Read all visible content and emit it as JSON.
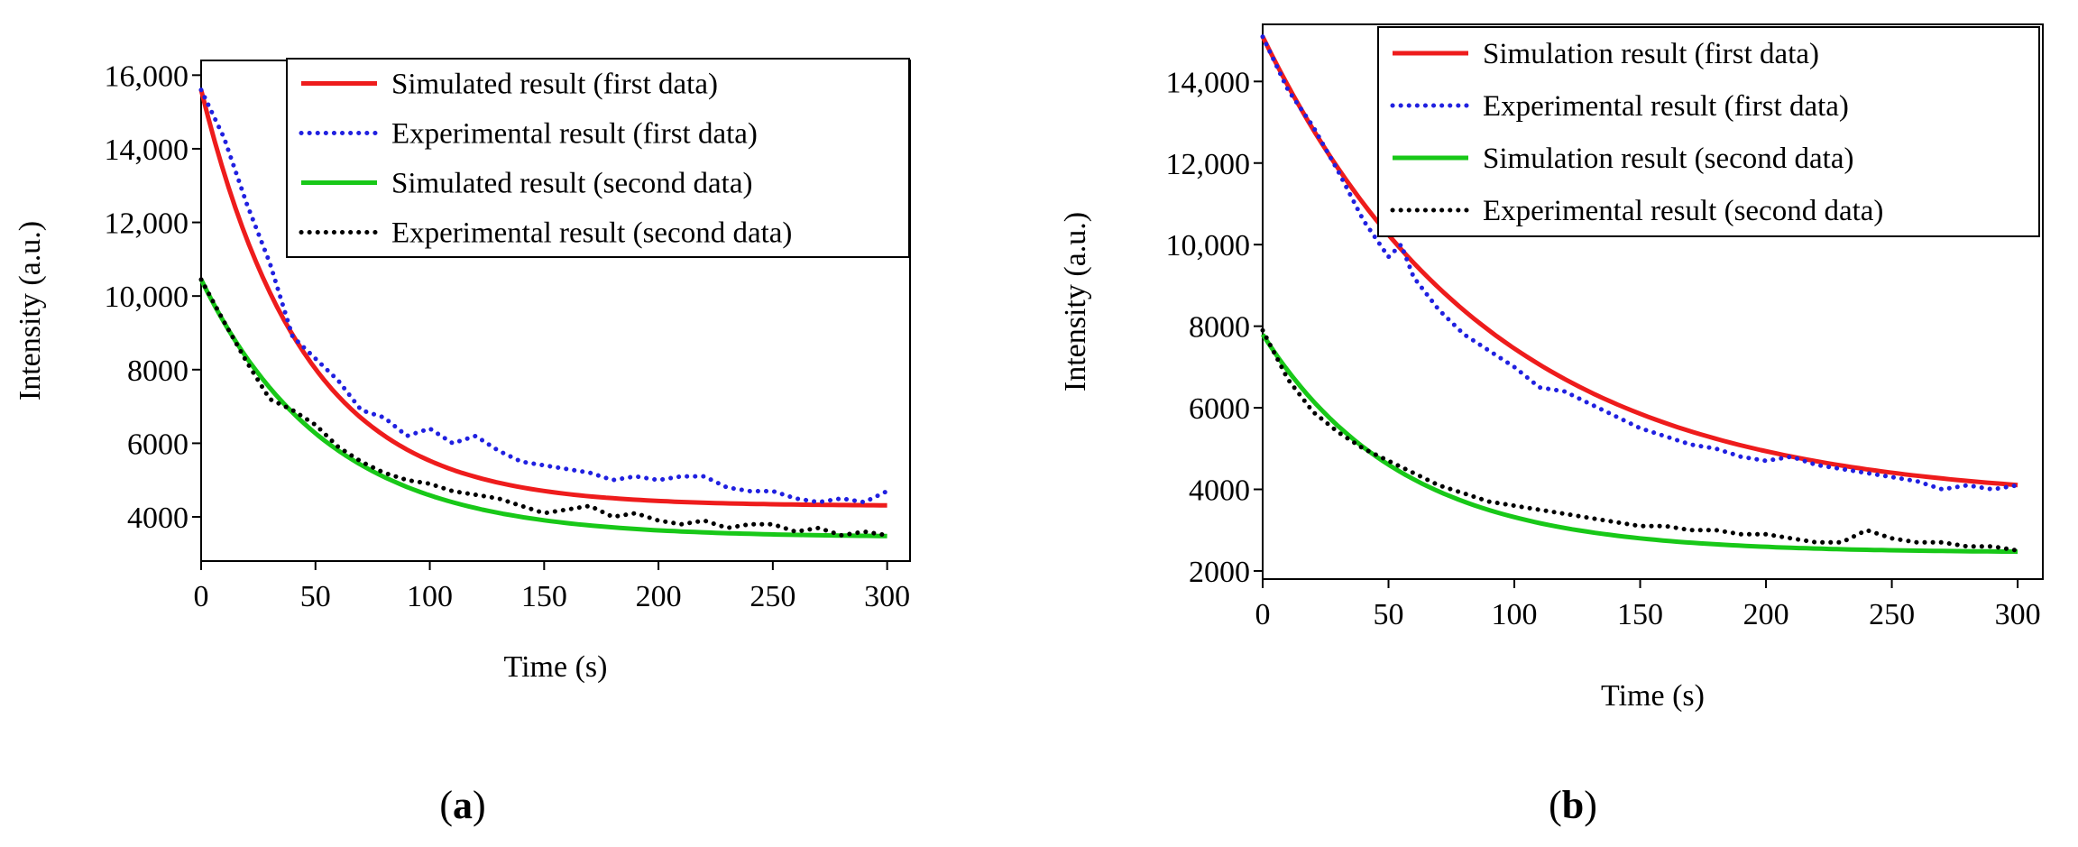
{
  "chart_data": [
    {
      "panel": "a",
      "type": "line",
      "caption_open": "(",
      "caption_letter": "a",
      "caption_close": ")",
      "xlabel": "Time (s)",
      "ylabel": "Intensity (a.u.)",
      "xlim": [
        0,
        310
      ],
      "ylim": [
        2800,
        16400
      ],
      "xticks": [
        0,
        50,
        100,
        150,
        200,
        250,
        300
      ],
      "xtick_labels": [
        "0",
        "50",
        "100",
        "150",
        "200",
        "250",
        "300"
      ],
      "yticks": [
        4000,
        6000,
        8000,
        10000,
        12000,
        14000,
        16000
      ],
      "ytick_labels": [
        "4000",
        "6000",
        "8000",
        "10,000",
        "12,000",
        "14,000",
        "16,000"
      ],
      "legend_position": "top-right",
      "series": [
        {
          "name": "Simulated result (first data)",
          "style": "solid",
          "color": "#ee1c1c",
          "model": {
            "y0": 15600,
            "yinf": 4300,
            "tau": 45
          }
        },
        {
          "name": "Experimental result (first data)",
          "style": "dotted",
          "color": "#2020e0",
          "x": [
            0,
            10,
            20,
            30,
            40,
            50,
            60,
            70,
            80,
            90,
            100,
            110,
            120,
            130,
            140,
            150,
            160,
            170,
            180,
            190,
            200,
            210,
            220,
            230,
            240,
            250,
            260,
            270,
            280,
            290,
            300
          ],
          "y": [
            15600,
            14300,
            12500,
            10900,
            8900,
            8300,
            7700,
            6900,
            6700,
            6200,
            6400,
            6000,
            6200,
            5800,
            5500,
            5400,
            5300,
            5200,
            5000,
            5100,
            5000,
            5100,
            5100,
            4800,
            4700,
            4700,
            4500,
            4400,
            4500,
            4400,
            4700
          ]
        },
        {
          "name": "Simulated result (second data)",
          "style": "solid",
          "color": "#18c818",
          "model": {
            "y0": 10450,
            "yinf": 3450,
            "tau": 55
          }
        },
        {
          "name": "Experimental result (second data)",
          "style": "dotted",
          "color": "#000000",
          "x": [
            0,
            10,
            20,
            30,
            40,
            50,
            60,
            70,
            80,
            90,
            100,
            110,
            120,
            130,
            140,
            150,
            160,
            170,
            180,
            190,
            200,
            210,
            220,
            230,
            240,
            250,
            260,
            270,
            280,
            290,
            300
          ],
          "y": [
            10450,
            9300,
            8200,
            7200,
            6900,
            6500,
            5900,
            5500,
            5200,
            5000,
            4900,
            4700,
            4600,
            4500,
            4300,
            4100,
            4200,
            4300,
            4000,
            4100,
            3900,
            3800,
            3900,
            3700,
            3800,
            3800,
            3600,
            3700,
            3500,
            3600,
            3500
          ]
        }
      ]
    },
    {
      "panel": "b",
      "type": "line",
      "caption_open": "(",
      "caption_letter": "b",
      "caption_close": ")",
      "xlabel": "Time (s)",
      "ylabel": "Intensity (a.u.)",
      "xlim": [
        0,
        310
      ],
      "ylim": [
        1800,
        15400
      ],
      "xticks": [
        0,
        50,
        100,
        150,
        200,
        250,
        300
      ],
      "xtick_labels": [
        "0",
        "50",
        "100",
        "150",
        "200",
        "250",
        "300"
      ],
      "yticks": [
        2000,
        4000,
        6000,
        8000,
        10000,
        12000,
        14000
      ],
      "ytick_labels": [
        "2000",
        "4000",
        "6000",
        "8000",
        "10,000",
        "12,000",
        "14,000"
      ],
      "legend_position": "top-right",
      "series": [
        {
          "name": "Simulation result (first data)",
          "style": "solid",
          "color": "#ee1c1c",
          "model": {
            "y0": 15100,
            "yinf": 3700,
            "tau": 90
          }
        },
        {
          "name": "Experimental result (first data)",
          "style": "dotted",
          "color": "#2020e0",
          "x": [
            0,
            10,
            20,
            30,
            40,
            50,
            55,
            60,
            70,
            80,
            90,
            100,
            110,
            120,
            130,
            140,
            150,
            160,
            170,
            180,
            190,
            200,
            210,
            220,
            230,
            240,
            250,
            260,
            270,
            280,
            290,
            300
          ],
          "y": [
            15100,
            13800,
            12900,
            11800,
            10600,
            9700,
            10000,
            9200,
            8400,
            7800,
            7400,
            7000,
            6500,
            6400,
            6100,
            5800,
            5500,
            5300,
            5100,
            5000,
            4800,
            4700,
            4800,
            4600,
            4500,
            4400,
            4300,
            4200,
            4000,
            4100,
            4000,
            4100
          ]
        },
        {
          "name": "Simulation result (second data)",
          "style": "solid",
          "color": "#18c818",
          "model": {
            "y0": 7800,
            "yinf": 2450,
            "tau": 55
          }
        },
        {
          "name": "Experimental result (second data)",
          "style": "dotted",
          "color": "#000000",
          "x": [
            0,
            10,
            20,
            30,
            40,
            50,
            60,
            70,
            80,
            90,
            100,
            110,
            120,
            130,
            140,
            150,
            160,
            170,
            180,
            190,
            200,
            210,
            220,
            230,
            240,
            250,
            260,
            270,
            280,
            290,
            300
          ],
          "y": [
            7900,
            6700,
            5900,
            5400,
            5000,
            4700,
            4400,
            4100,
            3900,
            3700,
            3600,
            3500,
            3400,
            3300,
            3200,
            3100,
            3100,
            3000,
            3000,
            2900,
            2900,
            2800,
            2700,
            2700,
            3000,
            2800,
            2700,
            2700,
            2600,
            2600,
            2500
          ]
        }
      ]
    }
  ]
}
